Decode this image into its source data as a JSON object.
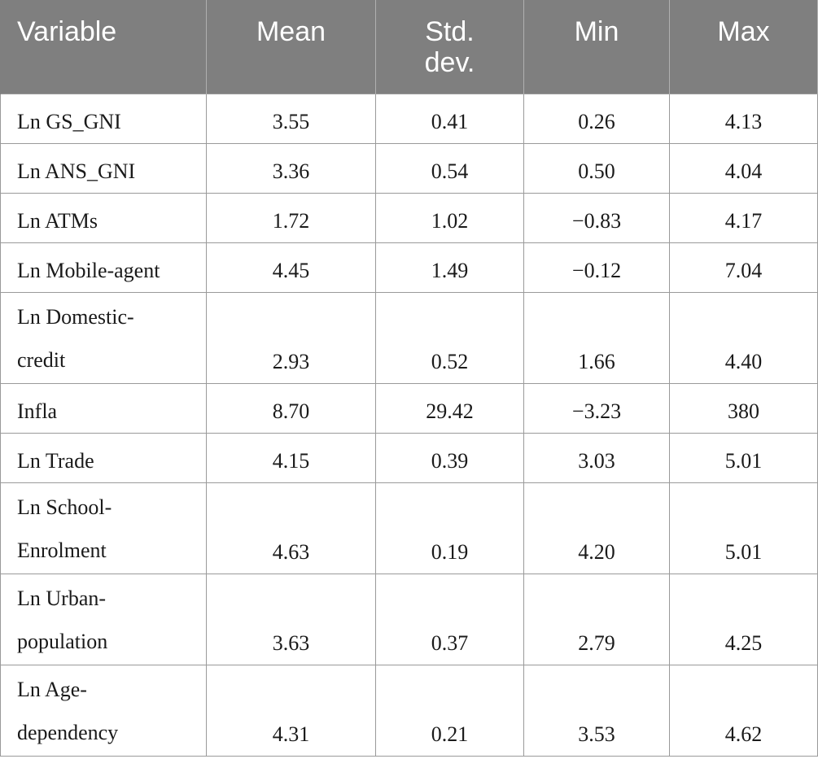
{
  "table": {
    "headers": [
      "Variable",
      "Mean",
      "Std.\ndev.",
      "Min",
      "Max"
    ],
    "header_std_line1": "Std.",
    "header_std_line2": "dev.",
    "rows": [
      {
        "label_1": "Ln GS_GNI",
        "label_2": "",
        "mean": "3.55",
        "sd": "0.41",
        "min": "0.26",
        "max": "4.13"
      },
      {
        "label_1": "Ln ANS_GNI",
        "label_2": "",
        "mean": "3.36",
        "sd": "0.54",
        "min": "0.50",
        "max": "4.04"
      },
      {
        "label_1": "Ln ATMs",
        "label_2": "",
        "mean": "1.72",
        "sd": "1.02",
        "min": "−0.83",
        "max": "4.17"
      },
      {
        "label_1": "Ln Mobile-agent",
        "label_2": "",
        "mean": "4.45",
        "sd": "1.49",
        "min": "−0.12",
        "max": "7.04"
      },
      {
        "label_1": "Ln Domestic-",
        "label_2": "credit",
        "mean": "2.93",
        "sd": "0.52",
        "min": "1.66",
        "max": "4.40"
      },
      {
        "label_1": "Infla",
        "label_2": "",
        "mean": "8.70",
        "sd": "29.42",
        "min": "−3.23",
        "max": "380"
      },
      {
        "label_1": "Ln Trade",
        "label_2": "",
        "mean": "4.15",
        "sd": "0.39",
        "min": "3.03",
        "max": "5.01"
      },
      {
        "label_1": "Ln School-",
        "label_2": "Enrolment",
        "mean": "4.63",
        "sd": "0.19",
        "min": "4.20",
        "max": "5.01"
      },
      {
        "label_1": "Ln Urban-",
        "label_2": "population",
        "mean": "3.63",
        "sd": "0.37",
        "min": "2.79",
        "max": "4.25"
      },
      {
        "label_1": "Ln Age-",
        "label_2": "dependency",
        "mean": "4.31",
        "sd": "0.21",
        "min": "3.53",
        "max": "4.62"
      }
    ]
  }
}
